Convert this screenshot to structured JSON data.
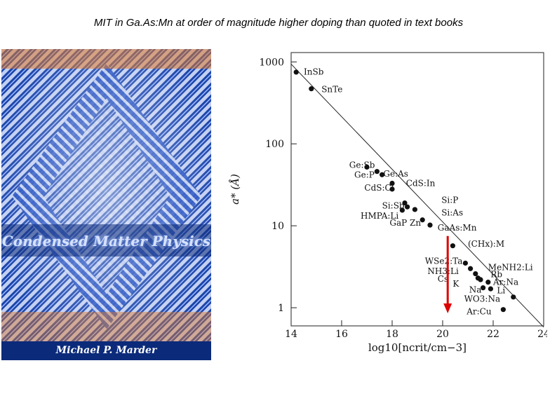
{
  "slide": {
    "title": "MIT in Ga.As:Mn at order of magnitude higher doping than quoted in text books"
  },
  "book": {
    "title": "Condensed Matter Physics",
    "author": "Michael P. Marder",
    "colors": {
      "cover": "#1d4fb8",
      "stripe": "#eaf0ff",
      "band": "#0b2a7a",
      "accent": "#e07a2a"
    }
  },
  "chart_data": {
    "type": "scatter",
    "title": "",
    "xlabel": "log10[ncrit/cm−3]",
    "ylabel": "a* (Å)",
    "xlim": [
      14,
      24
    ],
    "ylim": [
      0.6,
      1300
    ],
    "yscale": "log",
    "xticks": [
      14,
      16,
      18,
      20,
      22,
      24
    ],
    "yticks": [
      {
        "value": 1,
        "label": "1"
      },
      {
        "value": 10,
        "label": "10"
      },
      {
        "value": 100,
        "label": "100"
      },
      {
        "value": 1000,
        "label": "1000"
      }
    ],
    "grid": false,
    "fit_line": {
      "x": [
        14,
        24
      ],
      "y": [
        940,
        0.58
      ]
    },
    "points": [
      {
        "x": 14.2,
        "y": 750
      },
      {
        "x": 14.8,
        "y": 470
      },
      {
        "x": 17.0,
        "y": 52
      },
      {
        "x": 17.4,
        "y": 46
      },
      {
        "x": 17.6,
        "y": 42
      },
      {
        "x": 18.0,
        "y": 33
      },
      {
        "x": 18.0,
        "y": 28
      },
      {
        "x": 18.5,
        "y": 19
      },
      {
        "x": 18.4,
        "y": 15.5
      },
      {
        "x": 18.6,
        "y": 17
      },
      {
        "x": 18.9,
        "y": 15.8
      },
      {
        "x": 19.2,
        "y": 11.8
      },
      {
        "x": 19.5,
        "y": 10.2
      },
      {
        "x": 20.4,
        "y": 5.7
      },
      {
        "x": 20.9,
        "y": 3.5
      },
      {
        "x": 21.1,
        "y": 3.0
      },
      {
        "x": 21.3,
        "y": 2.6
      },
      {
        "x": 21.4,
        "y": 2.3
      },
      {
        "x": 21.5,
        "y": 2.2
      },
      {
        "x": 21.8,
        "y": 2.05
      },
      {
        "x": 21.6,
        "y": 1.75
      },
      {
        "x": 21.9,
        "y": 1.7
      },
      {
        "x": 22.8,
        "y": 1.35
      },
      {
        "x": 22.4,
        "y": 0.95
      }
    ],
    "annotations": [
      {
        "text": "InSb",
        "x": 14.5,
        "y": 760
      },
      {
        "text": "SnTe",
        "x": 15.2,
        "y": 460
      },
      {
        "text": "Ge:Sb",
        "x": 16.3,
        "y": 55
      },
      {
        "text": "Ge:P",
        "x": 16.5,
        "y": 42
      },
      {
        "text": "Ge:As",
        "x": 17.65,
        "y": 43
      },
      {
        "text": "CdS:In",
        "x": 18.55,
        "y": 33
      },
      {
        "text": "CdS:Cl",
        "x": 16.9,
        "y": 29
      },
      {
        "text": "Si:P",
        "x": 19.95,
        "y": 20.5
      },
      {
        "text": "Si:Sb",
        "x": 17.6,
        "y": 17.5
      },
      {
        "text": "Si:As",
        "x": 19.95,
        "y": 14.5
      },
      {
        "text": "HMPA:Li",
        "x": 16.75,
        "y": 13.2
      },
      {
        "text": "GaP Zn",
        "x": 17.9,
        "y": 10.8
      },
      {
        "text": "GaAs:Mn",
        "x": 19.8,
        "y": 9.5
      },
      {
        "text": "(CHx):M",
        "x": 21.0,
        "y": 6.0
      },
      {
        "text": "WSe2:Ta",
        "x": 19.3,
        "y": 3.7
      },
      {
        "text": "MeNH2:Li",
        "x": 21.8,
        "y": 3.1
      },
      {
        "text": "NH3:Li",
        "x": 19.4,
        "y": 2.8
      },
      {
        "text": "Rb",
        "x": 21.9,
        "y": 2.55
      },
      {
        "text": "Cs",
        "x": 19.8,
        "y": 2.25
      },
      {
        "text": "K",
        "x": 20.4,
        "y": 1.95
      },
      {
        "text": "Ar:Na",
        "x": 22.0,
        "y": 2.05
      },
      {
        "text": "Na",
        "x": 21.05,
        "y": 1.65
      },
      {
        "text": "Li",
        "x": 22.15,
        "y": 1.62
      },
      {
        "text": "WO3:Na",
        "x": 20.85,
        "y": 1.28
      },
      {
        "text": "Ar:Cu",
        "x": 20.95,
        "y": 0.9
      }
    ],
    "arrow": {
      "x": 20.2,
      "y_from": 7.5,
      "y_to": 0.45,
      "color": "#dd0000"
    }
  }
}
